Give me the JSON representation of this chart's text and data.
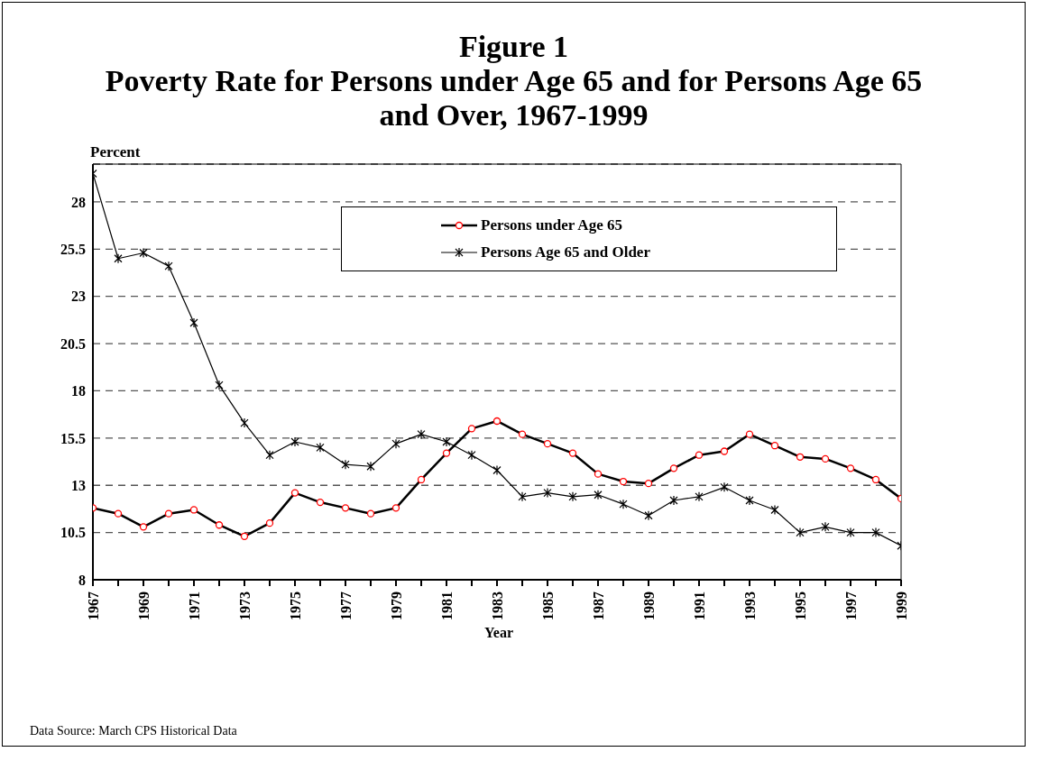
{
  "chart_data": {
    "type": "line",
    "title": "Figure 1",
    "subtitle": "Poverty Rate for Persons under Age 65 and for Persons Age 65 and Over, 1967-1999",
    "xlabel": "Year",
    "ylabel": "Percent",
    "annotations": [
      "Data Source: March CPS Historical Data"
    ],
    "x": [
      1967,
      1968,
      1969,
      1970,
      1971,
      1972,
      1973,
      1974,
      1975,
      1976,
      1977,
      1978,
      1979,
      1980,
      1981,
      1982,
      1983,
      1984,
      1985,
      1986,
      1987,
      1988,
      1989,
      1990,
      1991,
      1992,
      1993,
      1994,
      1995,
      1996,
      1997,
      1998,
      1999
    ],
    "series": [
      {
        "name": "Persons under Age 65",
        "color": "#000000",
        "marker": "circle",
        "values": [
          11.8,
          11.5,
          10.8,
          11.5,
          11.7,
          10.9,
          10.3,
          11.0,
          12.6,
          12.1,
          11.8,
          11.5,
          11.8,
          13.3,
          14.7,
          16.0,
          16.4,
          15.7,
          15.2,
          14.7,
          13.6,
          13.2,
          13.1,
          13.9,
          14.6,
          14.8,
          15.7,
          15.1,
          14.5,
          14.4,
          13.9,
          13.3,
          12.3
        ]
      },
      {
        "name": "Persons Age 65 and Older",
        "color": "#000000",
        "marker": "cross",
        "values": [
          29.5,
          25.0,
          25.3,
          24.6,
          21.6,
          18.3,
          16.3,
          14.6,
          15.3,
          15.0,
          14.1,
          14.0,
          15.2,
          15.7,
          15.3,
          14.6,
          13.8,
          12.4,
          12.6,
          12.4,
          12.5,
          12.0,
          11.4,
          12.2,
          12.4,
          12.9,
          12.2,
          11.7,
          10.5,
          10.8,
          10.5,
          10.5,
          9.8
        ]
      }
    ],
    "xlim": [
      1967,
      1999
    ],
    "xticks": [
      1967,
      {
        "value": 1968,
        "label": null
      },
      1969,
      {
        "value": 1970,
        "label": null
      },
      1971,
      {
        "value": 1972,
        "label": null
      },
      1973,
      {
        "value": 1974,
        "label": null
      },
      1975,
      {
        "value": 1976,
        "label": null
      },
      1977,
      {
        "value": 1978,
        "label": null
      },
      1979,
      {
        "value": 1980,
        "label": null
      },
      1981,
      {
        "value": 1982,
        "label": null
      },
      1983,
      {
        "value": 1984,
        "label": null
      },
      1985,
      {
        "value": 1986,
        "label": null
      },
      1987,
      {
        "value": 1988,
        "label": null
      },
      1989,
      {
        "value": 1990,
        "label": null
      },
      1991,
      {
        "value": 1992,
        "label": null
      },
      1993,
      {
        "value": 1994,
        "label": null
      },
      1995,
      {
        "value": 1996,
        "label": null
      },
      1997,
      {
        "value": 1998,
        "label": null
      },
      1999
    ],
    "ylim": [
      8,
      30
    ],
    "yticks": [
      8,
      10.5,
      13,
      15.5,
      18,
      20.5,
      23,
      25.5,
      28
    ],
    "grid": "y",
    "legend": "top",
    "line_style": "solid"
  }
}
